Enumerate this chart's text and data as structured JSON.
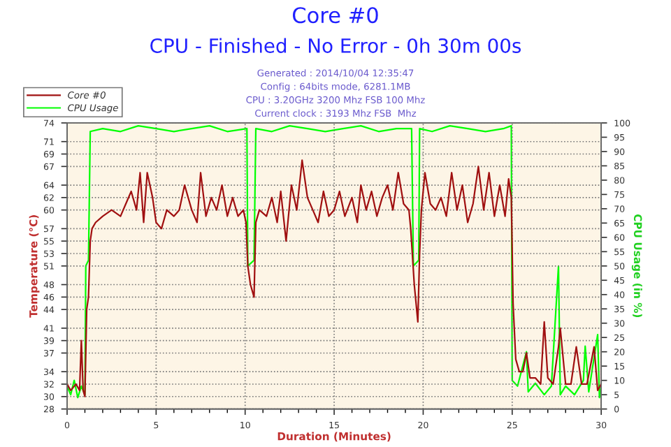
{
  "chart_data": {
    "type": "line",
    "title": "Core #0",
    "subtitle": "CPU - Finished - No Error - 0h 30m 00s",
    "annotations": [
      "Generated : 2014/10/04 12:35:47",
      "Config : 64bits mode, 6281.1MB",
      "CPU : 3.20GHz 3200 Mhz FSB 100 Mhz",
      "Current clock : 3193 Mhz FSB  Mhz"
    ],
    "xlabel": "Duration (Minutes)",
    "ylabel": "Temperature (°C)",
    "y2label": "CPU Usage (in %)",
    "xlim": [
      0,
      30
    ],
    "xticks": [
      0,
      5,
      10,
      15,
      20,
      25,
      30
    ],
    "ylim": [
      28,
      74
    ],
    "yticks": [
      28,
      30,
      32,
      34,
      37,
      39,
      41,
      44,
      46,
      48,
      51,
      53,
      55,
      57,
      60,
      62,
      64,
      67,
      69,
      71,
      74
    ],
    "y2lim": [
      0,
      100
    ],
    "y2ticks": [
      0,
      5,
      10,
      15,
      20,
      25,
      30,
      35,
      40,
      45,
      50,
      55,
      60,
      65,
      70,
      75,
      80,
      85,
      90,
      95,
      100
    ],
    "grid": true,
    "legend": "top left",
    "marker": "none",
    "line_style": "solid",
    "series": [
      {
        "name": "Core #0",
        "color": "#a01010",
        "x": [
          0,
          0.2,
          0.5,
          0.7,
          0.8,
          0.9,
          1.0,
          1.1,
          1.2,
          1.3,
          1.4,
          1.6,
          2.0,
          2.5,
          3.0,
          3.3,
          3.6,
          3.9,
          4.1,
          4.3,
          4.5,
          4.8,
          5.0,
          5.3,
          5.6,
          6.0,
          6.3,
          6.6,
          7.0,
          7.3,
          7.5,
          7.8,
          8.1,
          8.4,
          8.7,
          9.0,
          9.3,
          9.6,
          9.9,
          10.05,
          10.15,
          10.3,
          10.5,
          10.6,
          10.8,
          11.2,
          11.5,
          11.8,
          12.0,
          12.3,
          12.6,
          12.9,
          13.2,
          13.5,
          13.8,
          14.1,
          14.4,
          14.7,
          15.0,
          15.3,
          15.6,
          16.0,
          16.3,
          16.5,
          16.8,
          17.1,
          17.4,
          17.7,
          18.0,
          18.3,
          18.6,
          18.9,
          19.2,
          19.3,
          19.5,
          19.6,
          19.7,
          19.8,
          19.9,
          20.1,
          20.4,
          20.7,
          21.0,
          21.3,
          21.6,
          21.9,
          22.2,
          22.5,
          22.8,
          23.1,
          23.4,
          23.7,
          24.0,
          24.3,
          24.6,
          24.8,
          24.95,
          25.05,
          25.2,
          25.4,
          25.6,
          25.8,
          26.0,
          26.3,
          26.6,
          26.8,
          27.0,
          27.3,
          27.6,
          27.7,
          28.0,
          28.3,
          28.6,
          28.9,
          29.2,
          29.6,
          29.8,
          30.0
        ],
        "values": [
          32,
          31,
          32,
          31,
          39,
          31,
          30,
          44,
          46,
          55,
          57,
          58,
          59,
          60,
          59,
          61,
          63,
          60,
          66,
          58,
          66,
          62,
          58,
          57,
          60,
          59,
          60,
          64,
          60,
          58,
          66,
          59,
          62,
          60,
          64,
          59,
          62,
          59,
          60,
          58,
          51,
          48,
          46,
          58,
          60,
          59,
          62,
          58,
          63,
          55,
          64,
          60,
          68,
          62,
          60,
          58,
          63,
          59,
          60,
          63,
          59,
          62,
          58,
          64,
          60,
          63,
          59,
          62,
          64,
          60,
          66,
          61,
          60,
          57,
          48,
          45,
          42,
          53,
          60,
          66,
          61,
          60,
          62,
          59,
          66,
          60,
          64,
          58,
          61,
          67,
          60,
          66,
          59,
          64,
          59,
          65,
          62,
          45,
          36,
          34,
          34,
          37,
          33,
          33,
          32,
          42,
          33,
          32,
          38,
          41,
          32,
          32,
          38,
          32,
          32,
          38,
          31,
          32
        ]
      },
      {
        "name": "CPU Usage",
        "color": "#00ff00",
        "axis": "y2",
        "x": [
          0,
          0.2,
          0.4,
          0.6,
          0.8,
          1.0,
          1.05,
          1.2,
          1.3,
          2.0,
          3.0,
          4.0,
          5.0,
          6.0,
          7.0,
          8.0,
          9.0,
          10.1,
          10.15,
          10.5,
          10.6,
          11.5,
          12.5,
          13.5,
          14.5,
          15.5,
          16.5,
          17.5,
          18.5,
          19.35,
          19.45,
          19.75,
          19.8,
          20.5,
          21.5,
          22.5,
          23.5,
          24.5,
          24.95,
          25.0,
          25.3,
          25.8,
          25.9,
          26.3,
          26.8,
          27.2,
          27.6,
          27.7,
          28.0,
          28.5,
          29.0,
          29.1,
          29.3,
          29.8,
          29.9,
          30.0
        ],
        "values": [
          8,
          5,
          10,
          4,
          8,
          5,
          50,
          52,
          97,
          98,
          97,
          99,
          98,
          97,
          98,
          99,
          97,
          98,
          50,
          52,
          98,
          97,
          99,
          98,
          97,
          98,
          99,
          97,
          98,
          98,
          50,
          52,
          98,
          97,
          99,
          98,
          97,
          98,
          99,
          10,
          8,
          20,
          6,
          9,
          5,
          8,
          50,
          5,
          8,
          5,
          10,
          22,
          6,
          26,
          4,
          8
        ]
      }
    ]
  }
}
